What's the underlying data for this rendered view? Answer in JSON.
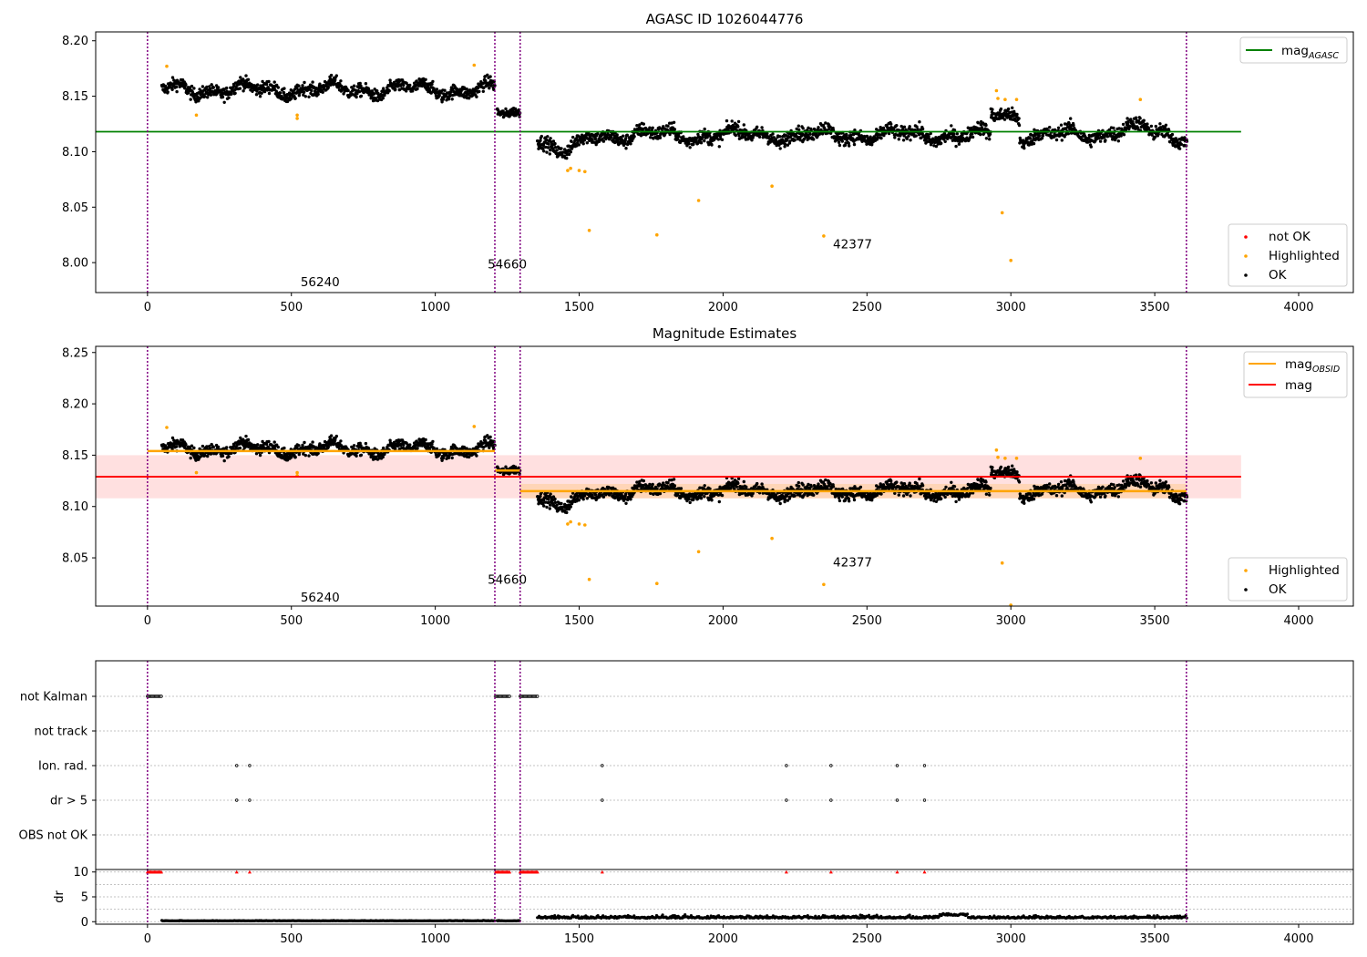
{
  "chart_data": [
    {
      "type": "scatter",
      "title": "AGASC ID 1026044776",
      "xlabel": "",
      "ylabel": "",
      "xlim": [
        -180,
        4190
      ],
      "ylim": [
        7.973,
        8.208
      ],
      "x_ticks": [
        "0",
        "500",
        "1000",
        "1500",
        "2000",
        "2500",
        "3000",
        "3500",
        "4000"
      ],
      "y_ticks": [
        "8.00",
        "8.05",
        "8.10",
        "8.15",
        "8.20"
      ],
      "grid": false,
      "legend_upper": {
        "placement": "upper-right",
        "entries": [
          {
            "label": "mag",
            "subscript": "AGASC",
            "color": "#008000",
            "marker": "line"
          }
        ]
      },
      "legend_lower": {
        "placement": "lower-right",
        "entries": [
          {
            "label": "not OK",
            "color": "#ff0000",
            "marker": "dot"
          },
          {
            "label": "Highlighted",
            "color": "#ffa500",
            "marker": "dot"
          },
          {
            "label": "OK",
            "color": "#000000",
            "marker": "dot"
          }
        ]
      },
      "mag_agasc": 8.118,
      "obsid_boundaries": [
        0,
        1207,
        1295,
        3610
      ],
      "obsid_labels": [
        {
          "text": "56240",
          "x": 600,
          "y": 7.983
        },
        {
          "text": "54660",
          "x": 1250,
          "y": 7.999
        },
        {
          "text": "42377",
          "x": 2450,
          "y": 8.017
        }
      ],
      "segments": [
        {
          "x_start": 50,
          "x_end": 1207,
          "mean": 8.156,
          "noise": 0.0055
        },
        {
          "x_start": 1215,
          "x_end": 1295,
          "mean": 8.134,
          "noise": 0.004
        },
        {
          "x_start": 1355,
          "x_end": 3612,
          "mean": 8.115,
          "noise": 0.006
        }
      ],
      "highlighted_points": [
        [
          67,
          8.177
        ],
        [
          170,
          8.133
        ],
        [
          520,
          8.133
        ],
        [
          520,
          8.13
        ],
        [
          1135,
          8.178
        ],
        [
          1460,
          8.083
        ],
        [
          1470,
          8.085
        ],
        [
          1500,
          8.083
        ],
        [
          1520,
          8.082
        ],
        [
          1535,
          8.029
        ],
        [
          1770,
          8.025
        ],
        [
          1915,
          8.056
        ],
        [
          2170,
          8.069
        ],
        [
          2350,
          8.024
        ],
        [
          2950,
          8.155
        ],
        [
          2955,
          8.148
        ],
        [
          2970,
          8.045
        ],
        [
          2980,
          8.147
        ],
        [
          3000,
          8.002
        ],
        [
          3020,
          8.147
        ],
        [
          3450,
          8.147
        ]
      ]
    },
    {
      "type": "scatter",
      "title": "Magnitude Estimates",
      "xlabel": "",
      "ylabel": "",
      "xlim": [
        -180,
        4190
      ],
      "ylim": [
        8.003,
        8.256
      ],
      "x_ticks": [
        "0",
        "500",
        "1000",
        "1500",
        "2000",
        "2500",
        "3000",
        "3500",
        "4000"
      ],
      "y_ticks": [
        "8.05",
        "8.10",
        "8.15",
        "8.20",
        "8.25"
      ],
      "grid": false,
      "legend_upper": {
        "placement": "upper-right",
        "entries": [
          {
            "label": "mag",
            "subscript": "OBSID",
            "color": "#ffa500",
            "marker": "line"
          },
          {
            "label": "mag",
            "subscript": "",
            "color": "#ff0000",
            "marker": "line"
          }
        ]
      },
      "legend_lower": {
        "placement": "lower-right",
        "entries": [
          {
            "label": "Highlighted",
            "color": "#ffa500",
            "marker": "dot"
          },
          {
            "label": "OK",
            "color": "#000000",
            "marker": "dot"
          }
        ]
      },
      "mag": 8.129,
      "mag_band": [
        8.108,
        8.15
      ],
      "mag_obsid": [
        {
          "x_start": 0,
          "x_end": 1207,
          "value": 8.154
        },
        {
          "x_start": 1207,
          "x_end": 1295,
          "value": 8.135
        },
        {
          "x_start": 1295,
          "x_end": 3610,
          "value": 8.115
        }
      ],
      "obsid_labels": [
        {
          "text": "56240",
          "x": 600,
          "y": 8.012
        },
        {
          "text": "54660",
          "x": 1250,
          "y": 8.029
        },
        {
          "text": "42377",
          "x": 2450,
          "y": 8.046
        }
      ]
    },
    {
      "type": "scatter",
      "title": "",
      "xlim": [
        -180,
        4190
      ],
      "flag_rows": [
        "not Kalman",
        "not track",
        "Ion. rad.",
        "dr > 5",
        "OBS not OK"
      ],
      "flag_points": {
        "not Kalman": [
          [
            0,
            50
          ],
          [
            1210,
            1260
          ],
          [
            1295,
            1355
          ]
        ],
        "not track": [],
        "Ion. rad.": [
          310,
          355,
          1580,
          2220,
          2375,
          2605,
          2700
        ],
        "dr > 5": [
          310,
          355,
          1580,
          2220,
          2375,
          2605,
          2700
        ],
        "OBS not OK": []
      },
      "dr_panel": {
        "ylabel": "dr",
        "ylim": [
          -0.5,
          10.5
        ],
        "y_ticks": [
          "0",
          "5",
          "10"
        ],
        "x_ticks": [
          "0",
          "500",
          "1000",
          "1500",
          "2000",
          "2500",
          "3000",
          "3500",
          "4000"
        ],
        "capped_value": 10,
        "capped_ranges": [
          [
            0,
            50
          ],
          [
            1210,
            1260
          ],
          [
            1295,
            1355
          ]
        ],
        "capped_points": [
          310,
          355,
          1580,
          2220,
          2375,
          2605,
          2700
        ],
        "segments": [
          {
            "x_start": 50,
            "x_end": 1207,
            "mean": 0.15
          },
          {
            "x_start": 1215,
            "x_end": 1295,
            "mean": 0.15
          },
          {
            "x_start": 1355,
            "x_end": 3612,
            "mean": 0.7
          }
        ]
      }
    }
  ]
}
